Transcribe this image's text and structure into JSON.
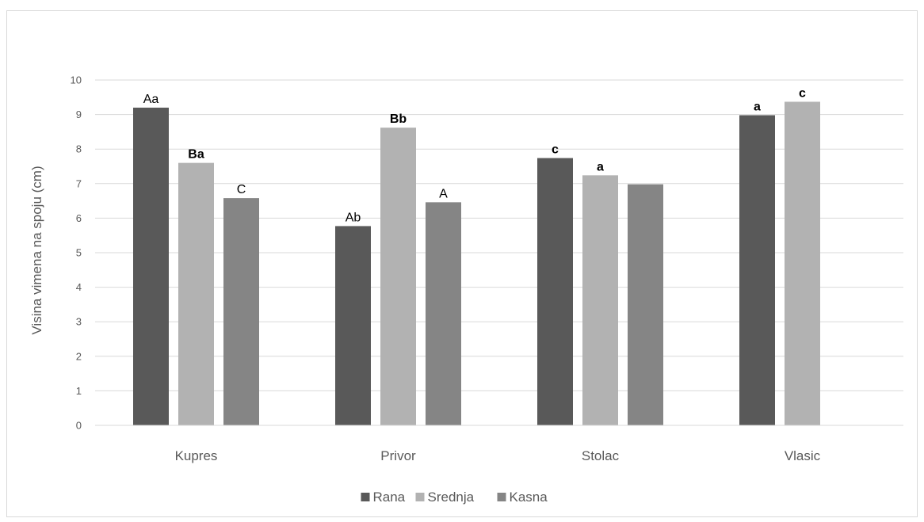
{
  "chart_data": {
    "type": "bar",
    "title": "",
    "xlabel": "",
    "ylabel": "Visina vimena na spoju (cm)",
    "ylim": [
      0,
      10
    ],
    "yticks": [
      0,
      1,
      2,
      3,
      4,
      5,
      6,
      7,
      8,
      9,
      10
    ],
    "grid": true,
    "legend_position": "bottom",
    "categories": [
      "Kupres",
      "Privor",
      "Stolac",
      "Vlasic"
    ],
    "series": [
      {
        "name": "Rana",
        "color": "#595959",
        "values": [
          9.2,
          5.77,
          7.74,
          8.98
        ],
        "labels": [
          "Aa",
          "Ab",
          "c",
          "a"
        ]
      },
      {
        "name": "Srednja",
        "color": "#b2b2b2",
        "values": [
          7.6,
          8.62,
          7.24,
          9.37
        ],
        "labels": [
          "Ba",
          "Bb",
          "a",
          "c"
        ]
      },
      {
        "name": "Kasna",
        "color": "#858585",
        "values": [
          6.58,
          6.46,
          6.98,
          null
        ],
        "labels": [
          "C",
          "A",
          "",
          ""
        ]
      }
    ]
  }
}
